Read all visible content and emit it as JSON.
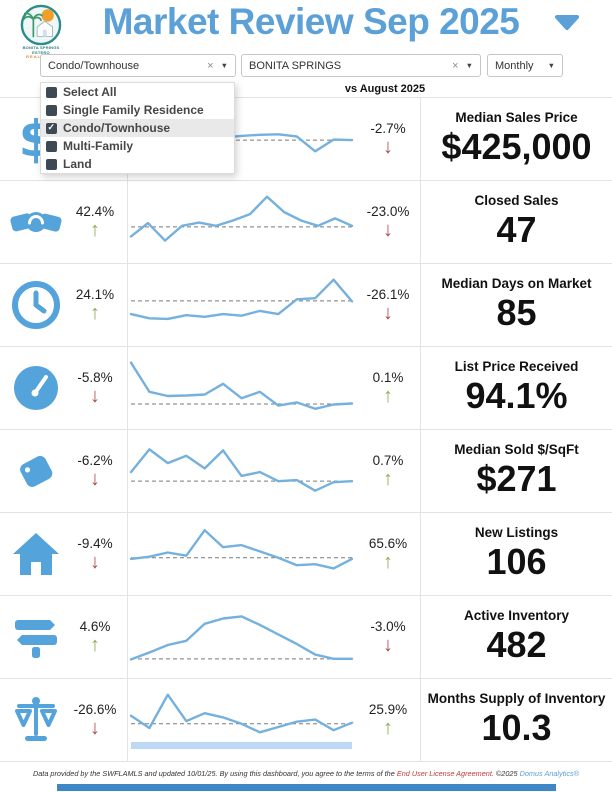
{
  "header": {
    "logo_line1": "BONITA SPRINGS ESTERO",
    "logo_line2": "REALTORS",
    "title": "Market Review Sep 2025"
  },
  "icons": {
    "clear": "×",
    "chevron": "▼",
    "arrow_up": "↑",
    "arrow_down": "↓"
  },
  "filters": {
    "property_type": {
      "value": "Condo/Townhouse"
    },
    "city": {
      "value": "BONITA SPRINGS"
    },
    "period": {
      "value": "Monthly"
    }
  },
  "comparison_label": "vs August 2025",
  "dropdown": {
    "items": [
      {
        "label": "Select All",
        "checked": false,
        "highlighted": false
      },
      {
        "label": "Single Family Residence",
        "checked": false,
        "highlighted": false
      },
      {
        "label": "Condo/Townhouse",
        "checked": true,
        "highlighted": true
      },
      {
        "label": "Multi-Family",
        "checked": false,
        "highlighted": false
      },
      {
        "label": "Land",
        "checked": false,
        "highlighted": false
      }
    ]
  },
  "colors": {
    "accent_blue": "#5ba0d7",
    "icon_blue": "#54a3da",
    "spark_blue": "#74b1de",
    "band_blue": "#bcd8f2",
    "up_green": "#8dad4f",
    "down_red": "#ad4c48"
  },
  "rows": [
    {
      "icon": "dollar-sign-icon",
      "label": "Median Sales Price",
      "value": "$425,000",
      "left": null,
      "right": {
        "pct": "-2.7%",
        "dir": "down"
      },
      "spark": {
        "values": [
          52,
          50,
          54,
          50,
          47,
          50,
          53,
          55,
          56,
          52,
          24,
          46,
          45
        ],
        "ref": 45,
        "band": false
      }
    },
    {
      "icon": "handshake-icon",
      "label": "Closed Sales",
      "value": "47",
      "left": {
        "pct": "42.4%",
        "dir": "up"
      },
      "right": {
        "pct": "-23.0%",
        "dir": "down"
      },
      "spark": {
        "values": [
          20,
          45,
          12,
          40,
          46,
          40,
          50,
          62,
          95,
          66,
          50,
          40,
          54,
          40
        ],
        "ref": 38,
        "band": false
      }
    },
    {
      "icon": "clock-icon",
      "label": "Median Days on Market",
      "value": "85",
      "left": {
        "pct": "24.1%",
        "dir": "up"
      },
      "right": {
        "pct": "-26.1%",
        "dir": "down"
      },
      "spark": {
        "values": [
          30,
          22,
          21,
          28,
          25,
          30,
          27,
          36,
          30,
          58,
          60,
          95,
          54
        ],
        "ref": 55,
        "band": false
      }
    },
    {
      "icon": "gauge-icon",
      "label": "List Price Received",
      "value": "94.1%",
      "left": {
        "pct": "-5.8%",
        "dir": "down"
      },
      "right": {
        "pct": "0.1%",
        "dir": "up"
      },
      "spark": {
        "values": [
          95,
          40,
          32,
          33,
          35,
          55,
          28,
          40,
          14,
          20,
          8,
          16,
          18
        ],
        "ref": 17,
        "band": false
      }
    },
    {
      "icon": "tag-icon",
      "label": "Median Sold $/SqFt",
      "value": "$271",
      "left": {
        "pct": "-6.2%",
        "dir": "down"
      },
      "right": {
        "pct": "0.7%",
        "dir": "up"
      },
      "spark": {
        "values": [
          45,
          88,
          62,
          76,
          52,
          86,
          38,
          45,
          28,
          30,
          10,
          26,
          28
        ],
        "ref": 28,
        "band": false
      }
    },
    {
      "icon": "house-icon",
      "label": "New Listings",
      "value": "106",
      "left": {
        "pct": "-9.4%",
        "dir": "down"
      },
      "right": {
        "pct": "65.6%",
        "dir": "up"
      },
      "spark": {
        "values": [
          38,
          42,
          50,
          44,
          92,
          60,
          64,
          52,
          40,
          26,
          28,
          20,
          38
        ],
        "ref": 40,
        "band": false
      }
    },
    {
      "icon": "signpost-icon",
      "label": "Active Inventory",
      "value": "482",
      "left": {
        "pct": "4.6%",
        "dir": "up"
      },
      "right": {
        "pct": "-3.0%",
        "dir": "down"
      },
      "spark": {
        "values": [
          5,
          18,
          32,
          40,
          72,
          82,
          86,
          70,
          52,
          34,
          14,
          6,
          6
        ],
        "ref": 6,
        "band": false
      }
    },
    {
      "icon": "scales-icon",
      "label": "Months Supply of Inventory",
      "value": "10.3",
      "left": {
        "pct": "-26.6%",
        "dir": "down"
      },
      "right": {
        "pct": "25.9%",
        "dir": "up"
      },
      "spark": {
        "values": [
          55,
          32,
          95,
          45,
          60,
          52,
          40,
          24,
          34,
          44,
          48,
          28,
          42
        ],
        "ref": 40,
        "band": true
      }
    }
  ],
  "footer": {
    "text_before": "Data provided by the SWFLAMLS and updated 10/01/25.  By using this dashboard, you agree to the terms of the ",
    "link": "End User License Agreement.",
    "middle": "  ©2025 ",
    "brand": "Domus Analytics®"
  }
}
